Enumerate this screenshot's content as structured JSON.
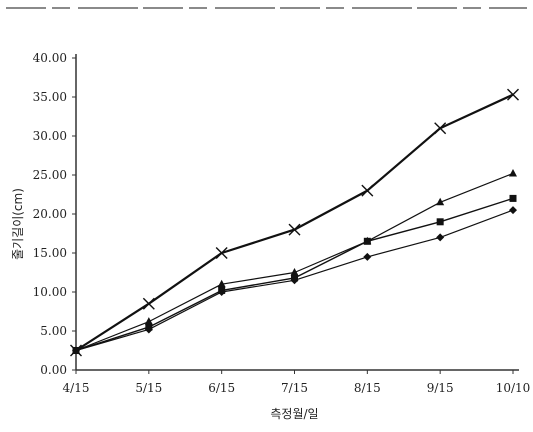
{
  "chart_data": {
    "type": "line",
    "title": "",
    "xlabel": "측정월/일",
    "ylabel": "줄기길이(cm)",
    "categories": [
      "4/15",
      "5/15",
      "6/15",
      "7/15",
      "8/15",
      "9/15",
      "10/10"
    ],
    "ylim": [
      0,
      40
    ],
    "yticks": [
      "0.00",
      "5.00",
      "10.00",
      "15.00",
      "20.00",
      "25.00",
      "30.00",
      "35.00",
      "40.00"
    ],
    "ytick_values": [
      0,
      5,
      10,
      15,
      20,
      25,
      30,
      35,
      40
    ],
    "grid": false,
    "legend": "none",
    "series": [
      {
        "marker": "diamond",
        "color": "#111111",
        "values": [
          2.5,
          5.2,
          10.0,
          11.5,
          14.5,
          17.0,
          20.5
        ]
      },
      {
        "marker": "square",
        "color": "#111111",
        "values": [
          2.5,
          5.5,
          10.2,
          11.8,
          16.5,
          19.0,
          22.0
        ]
      },
      {
        "marker": "triangle",
        "color": "#111111",
        "values": [
          2.5,
          6.2,
          11.0,
          12.5,
          16.5,
          21.5,
          25.2
        ]
      },
      {
        "marker": "x",
        "color": "#111111",
        "values": [
          2.5,
          8.5,
          15.0,
          18.0,
          23.0,
          31.0,
          35.3
        ]
      }
    ]
  }
}
